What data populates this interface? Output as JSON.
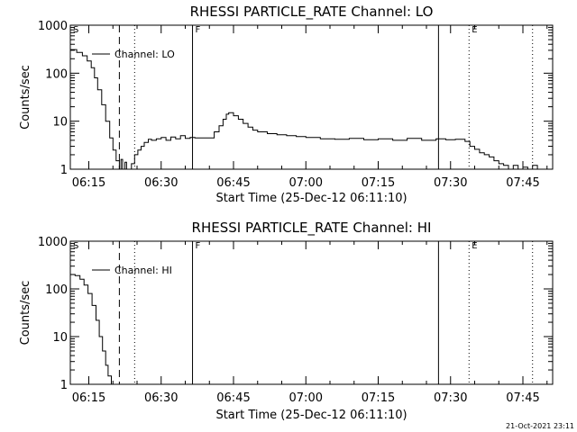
{
  "footer": {
    "timestamp": "21-Oct-2021 23:11"
  },
  "chart_data": [
    {
      "type": "line",
      "title": "RHESSI PARTICLE_RATE Channel: LO",
      "xlabel": "Start Time (25-Dec-12 06:11:10)",
      "ylabel": "Counts/sec",
      "yscale": "log",
      "ylim": [
        1,
        1000
      ],
      "xlim": [
        "06:11:10",
        "07:51:10"
      ],
      "x_ticks": [
        "06:15",
        "06:30",
        "06:45",
        "07:00",
        "07:15",
        "07:30",
        "07:45"
      ],
      "y_ticks": [
        "1",
        "10",
        "100",
        "1000"
      ],
      "legend": {
        "position": "top-left",
        "entries": [
          "Channel: LO"
        ]
      },
      "markers": [
        {
          "label": "S",
          "time": "06:11:10",
          "style": "solid"
        },
        {
          "label": "",
          "time": "06:21:20",
          "style": "dashed"
        },
        {
          "label": "",
          "time": "06:24:30",
          "style": "dotted"
        },
        {
          "label": "F",
          "time": "06:36:30",
          "style": "solid"
        },
        {
          "label": "",
          "time": "07:27:30",
          "style": "solid"
        },
        {
          "label": "E",
          "time": "07:33:50",
          "style": "dotted"
        },
        {
          "label": "",
          "time": "07:47:00",
          "style": "dotted"
        }
      ],
      "series": [
        {
          "name": "Channel: LO",
          "x": [
            "06:11:10",
            "06:12:30",
            "06:13:40",
            "06:14:40",
            "06:15:30",
            "06:16:10",
            "06:16:50",
            "06:17:40",
            "06:18:30",
            "06:19:20",
            "06:20:00",
            "06:20:40",
            "06:21:20",
            "06:21:40",
            "06:22:00",
            "06:22:30",
            "06:22:50",
            "06:23:20",
            "06:23:50",
            "06:24:30",
            "06:25:10",
            "06:25:50",
            "06:26:30",
            "06:27:20",
            "06:28:00",
            "06:29:00",
            "06:30:00",
            "06:31:00",
            "06:32:00",
            "06:33:00",
            "06:34:00",
            "06:35:00",
            "06:36:00",
            "06:37:00",
            "06:38:00",
            "06:39:00",
            "06:40:00",
            "06:41:00",
            "06:42:00",
            "06:42:50",
            "06:43:30",
            "06:44:00",
            "06:45:00",
            "06:46:00",
            "06:47:00",
            "06:48:00",
            "06:49:00",
            "06:50:00",
            "06:52:00",
            "06:54:00",
            "06:56:00",
            "06:58:00",
            "07:00:00",
            "07:03:00",
            "07:06:00",
            "07:09:00",
            "07:12:00",
            "07:15:00",
            "07:18:00",
            "07:21:00",
            "07:24:00",
            "07:27:00",
            "07:29:00",
            "07:31:00",
            "07:33:00",
            "07:34:00",
            "07:35:00",
            "07:36:00",
            "07:37:00",
            "07:38:00",
            "07:39:00",
            "07:40:00",
            "07:41:00",
            "07:42:00",
            "07:43:00",
            "07:44:00",
            "07:45:00",
            "07:46:00",
            "07:47:00",
            "07:48:00"
          ],
          "y": [
            310,
            270,
            230,
            180,
            130,
            80,
            45,
            22,
            10,
            4.5,
            2.5,
            1.5,
            1,
            1.6,
            1,
            1.4,
            1,
            1,
            1.3,
            2,
            2.5,
            3,
            3.6,
            4.2,
            4,
            4.3,
            4.6,
            4,
            4.7,
            4.3,
            5,
            4.4,
            4.6,
            4.5,
            4.5,
            4.5,
            4.5,
            6,
            8,
            11,
            14,
            15,
            13,
            11,
            9,
            7.5,
            6.5,
            6,
            5.5,
            5.2,
            5,
            4.8,
            4.6,
            4.3,
            4.2,
            4.4,
            4.1,
            4.3,
            4,
            4.4,
            4,
            4.3,
            4.1,
            4.2,
            3.8,
            3,
            2.6,
            2.2,
            2,
            1.8,
            1.5,
            1.3,
            1.2,
            1,
            1.2,
            1,
            1.1,
            1,
            1.2,
            1
          ]
        }
      ]
    },
    {
      "type": "line",
      "title": "RHESSI PARTICLE_RATE Channel: HI",
      "xlabel": "Start Time (25-Dec-12 06:11:10)",
      "ylabel": "Counts/sec",
      "yscale": "log",
      "ylim": [
        1,
        1000
      ],
      "xlim": [
        "06:11:10",
        "07:51:10"
      ],
      "x_ticks": [
        "06:15",
        "06:30",
        "06:45",
        "07:00",
        "07:15",
        "07:30",
        "07:45"
      ],
      "y_ticks": [
        "1",
        "10",
        "100",
        "1000"
      ],
      "legend": {
        "position": "top-left",
        "entries": [
          "Channel: HI"
        ]
      },
      "markers": [
        {
          "label": "S",
          "time": "06:11:10",
          "style": "solid"
        },
        {
          "label": "",
          "time": "06:21:20",
          "style": "dashed"
        },
        {
          "label": "",
          "time": "06:24:30",
          "style": "dotted"
        },
        {
          "label": "F",
          "time": "06:36:30",
          "style": "solid"
        },
        {
          "label": "",
          "time": "07:27:30",
          "style": "solid"
        },
        {
          "label": "E",
          "time": "07:33:50",
          "style": "dotted"
        },
        {
          "label": "",
          "time": "07:47:00",
          "style": "dotted"
        }
      ],
      "series": [
        {
          "name": "Channel: HI",
          "x": [
            "06:11:10",
            "06:12:10",
            "06:13:10",
            "06:14:00",
            "06:14:50",
            "06:15:40",
            "06:16:30",
            "06:17:10",
            "06:17:50",
            "06:18:30",
            "06:19:00",
            "06:19:40"
          ],
          "y": [
            200,
            190,
            160,
            120,
            80,
            45,
            22,
            10,
            5,
            2.5,
            1.5,
            1
          ]
        }
      ]
    }
  ]
}
